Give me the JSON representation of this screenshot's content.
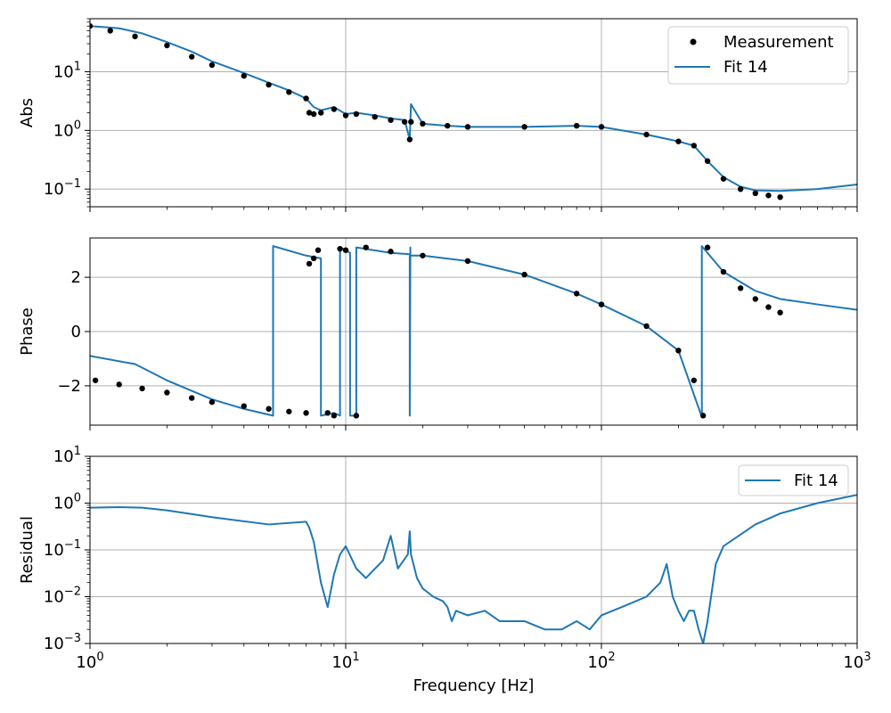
{
  "chart_data": [
    {
      "type": "line",
      "panel": "magnitude",
      "ylabel": "Abs",
      "xscale": "log",
      "yscale": "log",
      "xlim": [
        1,
        1000
      ],
      "ylim": [
        0.05,
        80
      ],
      "y_ticks": [
        {
          "value": 0.1,
          "base": "10",
          "exp": "−1"
        },
        {
          "value": 1,
          "base": "10",
          "exp": "0"
        },
        {
          "value": 10,
          "base": "10",
          "exp": "1"
        }
      ],
      "grid": true,
      "legend": {
        "placement": "top-right",
        "entries": [
          "Measurement",
          "Fit 14"
        ]
      },
      "series": [
        {
          "name": "Measurement",
          "style": "points",
          "color": "#000000",
          "x": [
            1.0,
            1.2,
            1.5,
            2.0,
            2.5,
            3.0,
            4.0,
            5.0,
            6.0,
            7.0,
            7.2,
            7.5,
            8.0,
            9.0,
            10.0,
            11.0,
            13.0,
            15.0,
            17.0,
            17.8,
            18.0,
            20.0,
            25.0,
            30.0,
            50.0,
            80.0,
            100.0,
            150.0,
            200.0,
            230.0,
            260.0,
            300.0,
            350.0,
            400.0,
            450.0,
            500.0
          ],
          "y": [
            60,
            50,
            40,
            28,
            18,
            13,
            8.5,
            6,
            4.5,
            3.5,
            2.0,
            1.9,
            2.0,
            2.3,
            1.8,
            1.9,
            1.7,
            1.5,
            1.4,
            0.7,
            1.4,
            1.3,
            1.2,
            1.15,
            1.15,
            1.2,
            1.15,
            0.85,
            0.65,
            0.55,
            0.3,
            0.15,
            0.1,
            0.085,
            0.078,
            0.073
          ]
        },
        {
          "name": "Fit 14",
          "style": "line",
          "color": "#1f77b4",
          "x": [
            1.0,
            1.3,
            1.6,
            2.0,
            2.5,
            3.0,
            4.0,
            5.0,
            6.0,
            7.0,
            7.5,
            8.0,
            9.0,
            10.0,
            11.0,
            13.0,
            15.0,
            17.0,
            17.8,
            18.0,
            20.0,
            25.0,
            30.0,
            50.0,
            80.0,
            100.0,
            150.0,
            200.0,
            230.0,
            260.0,
            300.0,
            350.0,
            400.0,
            500.0,
            700.0,
            1000.0
          ],
          "y": [
            60,
            55,
            45,
            32,
            22,
            15,
            9.5,
            6.5,
            4.8,
            3.5,
            2.5,
            2.2,
            2.5,
            1.9,
            2.0,
            1.8,
            1.6,
            1.5,
            0.7,
            2.8,
            1.3,
            1.2,
            1.15,
            1.15,
            1.2,
            1.15,
            0.85,
            0.65,
            0.55,
            0.3,
            0.16,
            0.11,
            0.095,
            0.093,
            0.1,
            0.12
          ]
        }
      ]
    },
    {
      "type": "line",
      "panel": "phase",
      "ylabel": "Phase",
      "xscale": "log",
      "yscale": "linear",
      "xlim": [
        1,
        1000
      ],
      "ylim": [
        -3.45,
        3.45
      ],
      "y_ticks": [
        {
          "value": -2,
          "label": "−2"
        },
        {
          "value": 0,
          "label": "0"
        },
        {
          "value": 2,
          "label": "2"
        }
      ],
      "grid": true,
      "series": [
        {
          "name": "Measurement",
          "style": "points",
          "color": "#000000",
          "x": [
            1.05,
            1.3,
            1.6,
            2.0,
            2.5,
            3.0,
            4.0,
            5.0,
            6.0,
            7.0,
            7.2,
            7.5,
            7.8,
            8.5,
            9.0,
            9.5,
            10.0,
            11.0,
            12.0,
            15.0,
            20.0,
            30.0,
            50.0,
            80.0,
            100.0,
            150.0,
            200.0,
            230.0,
            250.0,
            260.0,
            300.0,
            350.0,
            400.0,
            450.0,
            500.0
          ],
          "y": [
            -1.8,
            -1.95,
            -2.1,
            -2.25,
            -2.45,
            -2.6,
            -2.75,
            -2.85,
            -2.95,
            -3.0,
            2.5,
            2.7,
            3.0,
            -3.0,
            -3.1,
            3.05,
            3.0,
            -3.1,
            3.1,
            2.95,
            2.8,
            2.6,
            2.1,
            1.4,
            1.0,
            0.2,
            -0.7,
            -1.8,
            -3.1,
            3.1,
            2.2,
            1.6,
            1.2,
            0.9,
            0.7
          ]
        },
        {
          "name": "Fit 14",
          "style": "line",
          "color": "#1f77b4",
          "x": [
            1.0,
            1.5,
            2.0,
            3.0,
            4.0,
            5.2,
            5.2,
            7.0,
            8.0,
            8.0,
            9.0,
            9.5,
            9.5,
            10.0,
            10.4,
            10.4,
            11.0,
            11.0,
            15.0,
            17.8,
            17.8,
            17.9,
            17.9,
            20.0,
            30.0,
            50.0,
            80.0,
            100.0,
            150.0,
            200.0,
            247.0,
            247.0,
            300.0,
            400.0,
            500.0,
            700.0,
            1000.0
          ],
          "y": [
            -0.9,
            -1.2,
            -1.8,
            -2.5,
            -2.85,
            -3.1,
            3.15,
            2.8,
            2.7,
            -3.1,
            -3.0,
            -3.1,
            3.1,
            3.0,
            2.9,
            -3.1,
            -3.1,
            3.1,
            2.9,
            2.85,
            -3.1,
            3.1,
            2.8,
            2.8,
            2.6,
            2.1,
            1.4,
            1.0,
            0.2,
            -0.7,
            -3.15,
            3.15,
            2.2,
            1.5,
            1.2,
            1.0,
            0.8
          ]
        }
      ]
    },
    {
      "type": "line",
      "panel": "residual",
      "ylabel": "Residual",
      "xlabel": "Frequency [Hz]",
      "xscale": "log",
      "yscale": "log",
      "xlim": [
        1,
        1000
      ],
      "ylim": [
        0.001,
        10
      ],
      "x_ticks": [
        {
          "value": 1,
          "base": "10",
          "exp": "0"
        },
        {
          "value": 10,
          "base": "10",
          "exp": "1"
        },
        {
          "value": 100,
          "base": "10",
          "exp": "2"
        },
        {
          "value": 1000,
          "base": "10",
          "exp": "3"
        }
      ],
      "y_ticks": [
        {
          "value": 0.001,
          "base": "10",
          "exp": "−3"
        },
        {
          "value": 0.01,
          "base": "10",
          "exp": "−2"
        },
        {
          "value": 0.1,
          "base": "10",
          "exp": "−1"
        },
        {
          "value": 1,
          "base": "10",
          "exp": "0"
        },
        {
          "value": 10,
          "base": "10",
          "exp": "1"
        }
      ],
      "grid": true,
      "legend": {
        "placement": "top-right",
        "entries": [
          "Fit 14"
        ]
      },
      "series": [
        {
          "name": "Fit 14",
          "style": "line",
          "color": "#1f77b4",
          "x": [
            1.0,
            1.3,
            1.6,
            2.0,
            3.0,
            5.0,
            7.0,
            7.2,
            7.5,
            8.0,
            8.5,
            9.0,
            9.5,
            10.0,
            11.0,
            12.0,
            14.0,
            15.0,
            16.0,
            17.5,
            17.8,
            18.0,
            19.0,
            20.0,
            22.0,
            24.0,
            25.0,
            26.0,
            27.0,
            30.0,
            35.0,
            40.0,
            50.0,
            60.0,
            70.0,
            80.0,
            90.0,
            100.0,
            120.0,
            150.0,
            170.0,
            180.0,
            190.0,
            200.0,
            210.0,
            220.0,
            230.0,
            240.0,
            250.0,
            260.0,
            280.0,
            300.0,
            400.0,
            500.0,
            700.0,
            1000.0
          ],
          "y": [
            0.8,
            0.82,
            0.8,
            0.7,
            0.5,
            0.35,
            0.4,
            0.3,
            0.15,
            0.02,
            0.006,
            0.03,
            0.08,
            0.12,
            0.04,
            0.025,
            0.06,
            0.2,
            0.04,
            0.08,
            0.25,
            0.08,
            0.025,
            0.015,
            0.01,
            0.008,
            0.006,
            0.003,
            0.005,
            0.004,
            0.005,
            0.003,
            0.003,
            0.002,
            0.002,
            0.003,
            0.002,
            0.004,
            0.006,
            0.01,
            0.02,
            0.05,
            0.01,
            0.005,
            0.003,
            0.005,
            0.005,
            0.002,
            0.001,
            0.003,
            0.05,
            0.12,
            0.35,
            0.6,
            1.0,
            1.5
          ]
        }
      ]
    }
  ],
  "legend_labels": {
    "measurement": "Measurement",
    "fit": "Fit 14"
  },
  "colors": {
    "measurement": "#000000",
    "fit": "#1f77b4",
    "grid": "#b0b0b0"
  }
}
